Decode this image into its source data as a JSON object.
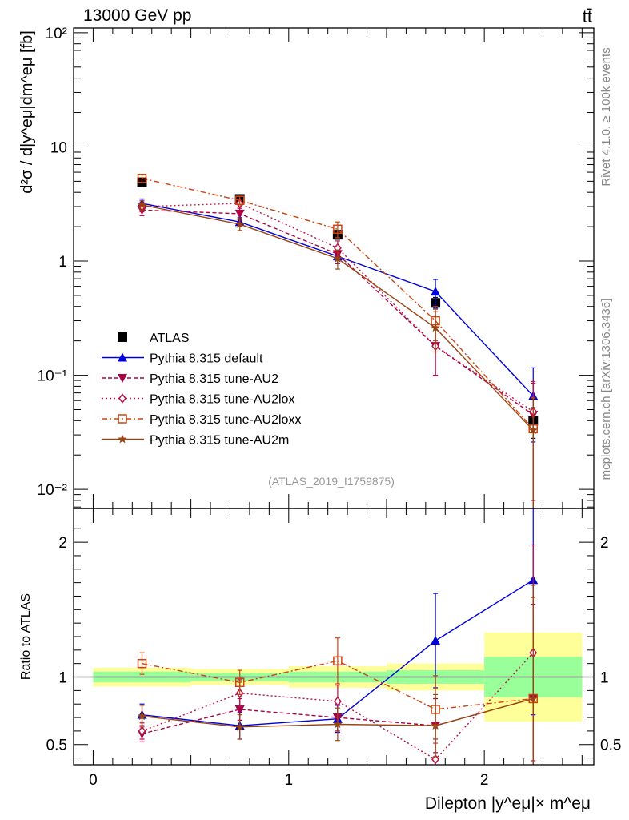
{
  "header": {
    "energy_label": "13000 GeV pp",
    "process_label": "tt̄"
  },
  "side_labels": {
    "rivet": "Rivet 4.1.0, ≥ 100k events",
    "mcplots": "mcplots.cern.ch [arXiv:1306.3436]"
  },
  "analysis_tag": "(ATLAS_2019_I1759875)",
  "colors": {
    "data": "#000000",
    "default": "#0000dd",
    "au2": "#aa0044",
    "au2lox": "#bb1144",
    "au2loxx": "#cc4411",
    "au2m": "#994411",
    "band_inner": "#99ff99",
    "band_outer": "#ffff99"
  },
  "chart_data": [
    {
      "id": "main",
      "type": "scatter",
      "yscale": "log",
      "ylabel": "d²σ / d|y^eμ|dm^eμ [fb]",
      "xlim": [
        -0.1,
        2.56
      ],
      "ylim": [
        0.0068,
        110
      ],
      "y_ticks": [
        {
          "v": 0.01,
          "label": "10⁻²"
        },
        {
          "v": 0.1,
          "label": "10⁻¹"
        },
        {
          "v": 1,
          "label": "1"
        },
        {
          "v": 10,
          "label": "10"
        },
        {
          "v": 100,
          "label": "10²"
        }
      ],
      "x": [
        0.25,
        0.75,
        1.25,
        1.75,
        2.25
      ],
      "series": [
        {
          "key": "data",
          "name": "ATLAS",
          "style": "data",
          "values": [
            4.9,
            3.5,
            1.7,
            0.43,
            0.04
          ],
          "err_lo": [
            0.4,
            0.25,
            0.15,
            0.05,
            0.012
          ],
          "err_hi": [
            0.4,
            0.25,
            0.15,
            0.05,
            0.012
          ]
        },
        {
          "key": "default",
          "name": "Pythia 8.315 default",
          "style": "tri_up",
          "values": [
            3.2,
            2.2,
            1.1,
            0.54,
            0.066
          ],
          "err_lo": [
            0.3,
            0.2,
            0.15,
            0.15,
            0.04
          ],
          "err_hi": [
            0.3,
            0.2,
            0.15,
            0.15,
            0.05
          ]
        },
        {
          "key": "au2",
          "name": "Pythia 8.315 tune-AU2",
          "style": "tri_down",
          "values": [
            2.8,
            2.6,
            1.15,
            0.18,
            0.045
          ],
          "err_lo": [
            0.3,
            0.3,
            0.2,
            0.08,
            0.04
          ],
          "err_hi": [
            0.3,
            0.3,
            0.2,
            0.08,
            0.04
          ]
        },
        {
          "key": "au2lox",
          "name": "Pythia 8.315 tune-AU2lox",
          "style": "diamond",
          "values": [
            3.0,
            3.2,
            1.3,
            0.18,
            0.048
          ],
          "err_lo": [
            0.3,
            0.3,
            0.2,
            0.08,
            0.04
          ],
          "err_hi": [
            0.3,
            0.3,
            0.2,
            0.08,
            0.04
          ]
        },
        {
          "key": "au2loxx",
          "name": "Pythia 8.315 tune-AU2loxx",
          "style": "square",
          "values": [
            5.3,
            3.4,
            1.9,
            0.3,
            0.034
          ],
          "err_lo": [
            0.4,
            0.3,
            0.3,
            0.1,
            0.03
          ],
          "err_hi": [
            0.4,
            0.3,
            0.3,
            0.1,
            0.03
          ]
        },
        {
          "key": "au2m",
          "name": "Pythia 8.315 tune-AU2m",
          "style": "star",
          "values": [
            3.1,
            2.1,
            1.05,
            0.26,
            0.033
          ],
          "err_lo": [
            0.3,
            0.25,
            0.2,
            0.1,
            0.033
          ],
          "err_hi": [
            0.3,
            0.25,
            0.2,
            0.1,
            0.03
          ]
        }
      ]
    },
    {
      "id": "ratio",
      "type": "line",
      "xlabel": "Dilepton |y^eμ|× m^eμ",
      "ylabel": "Ratio to ATLAS",
      "xlim": [
        -0.1,
        2.56
      ],
      "ylim": [
        0.35,
        2.25
      ],
      "x_ticks": [
        {
          "v": 0,
          "label": "0"
        },
        {
          "v": 1,
          "label": "1"
        },
        {
          "v": 2,
          "label": "2"
        }
      ],
      "y_ticks": [
        {
          "v": 0.5,
          "label": "0.5"
        },
        {
          "v": 1,
          "label": "1"
        },
        {
          "v": 2,
          "label": "2"
        }
      ],
      "band_edges": [
        0,
        0.5,
        1,
        1.5,
        2,
        2.5
      ],
      "band_inner": [
        [
          0.96,
          1.04
        ],
        [
          0.97,
          1.03
        ],
        [
          0.96,
          1.04
        ],
        [
          0.95,
          1.05
        ],
        [
          0.85,
          1.15
        ]
      ],
      "band_outer": [
        [
          0.93,
          1.07
        ],
        [
          0.94,
          1.06
        ],
        [
          0.92,
          1.08
        ],
        [
          0.9,
          1.1
        ],
        [
          0.67,
          1.33
        ]
      ],
      "x": [
        0.25,
        0.75,
        1.25,
        1.75,
        2.25
      ],
      "series": [
        {
          "key": "default",
          "values": [
            0.72,
            0.64,
            0.69,
            1.27,
            1.72
          ],
          "err": [
            0.08,
            0.1,
            0.1,
            0.35,
            1.0
          ]
        },
        {
          "key": "au2",
          "values": [
            0.58,
            0.76,
            0.7,
            0.64,
            0.84
          ],
          "err": [
            0.06,
            0.08,
            0.1,
            0.2,
            0.7
          ]
        },
        {
          "key": "au2lox",
          "values": [
            0.6,
            0.88,
            0.82,
            0.39,
            1.18
          ],
          "err": [
            0.06,
            0.1,
            0.12,
            0.15,
            0.8
          ]
        },
        {
          "key": "au2loxx",
          "values": [
            1.1,
            0.96,
            1.12,
            0.76,
            0.84
          ],
          "err": [
            0.08,
            0.09,
            0.17,
            0.25,
            0.75
          ]
        },
        {
          "key": "au2m",
          "values": [
            0.71,
            0.63,
            0.65,
            0.64,
            0.84
          ],
          "err": [
            0.08,
            0.09,
            0.12,
            0.23,
            0.84
          ]
        }
      ]
    }
  ]
}
